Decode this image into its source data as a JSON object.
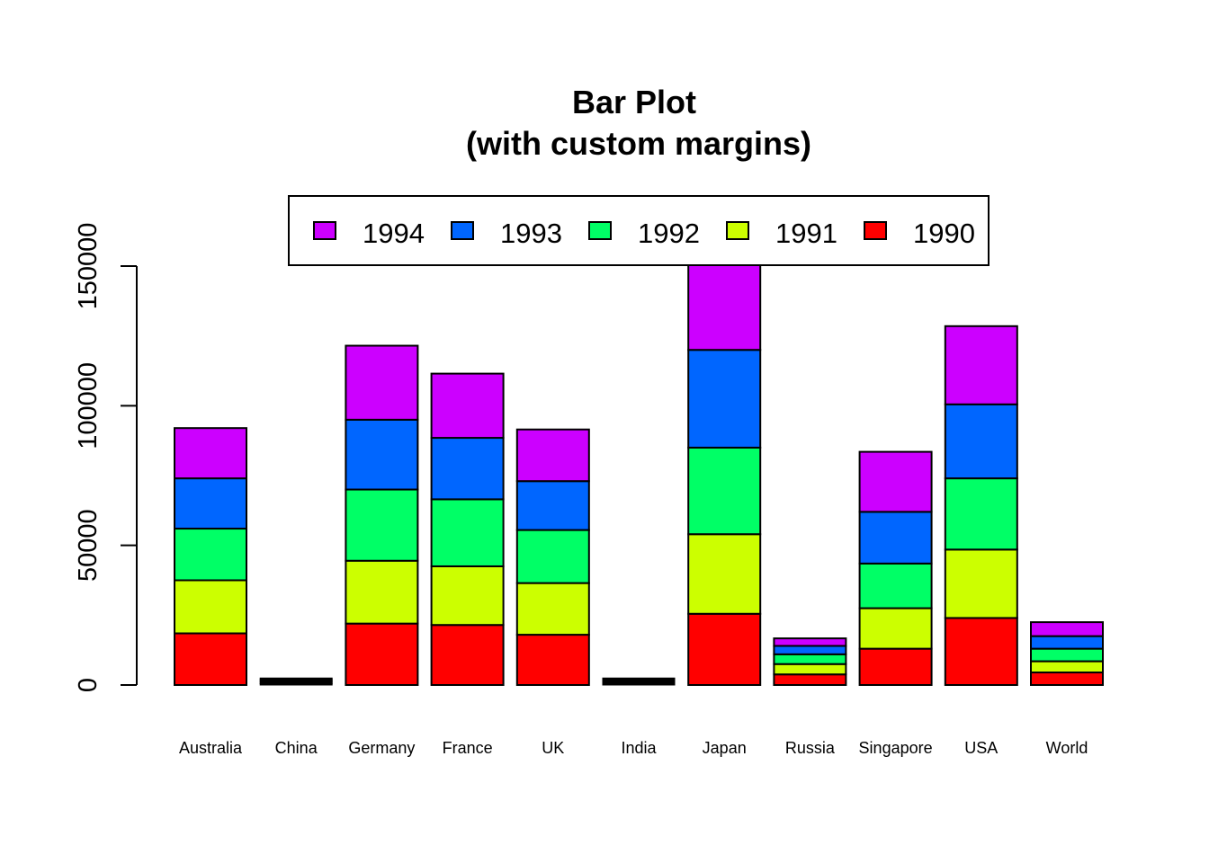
{
  "chart_data": {
    "type": "bar",
    "stacked": true,
    "title": "Bar Plot",
    "subtitle": "(with custom margins)",
    "xlabel": "",
    "ylabel": "",
    "ylim": [
      0,
      150000
    ],
    "yticks": [
      0,
      50000,
      100000,
      150000
    ],
    "ytick_labels": [
      "0",
      "50000",
      "100000",
      "150000"
    ],
    "grid": false,
    "legend_position": "top",
    "categories": [
      "Australia",
      "China",
      "Germany",
      "France",
      "UK",
      "India",
      "Japan",
      "Russia",
      "Singapore",
      "USA",
      "World"
    ],
    "series": [
      {
        "name": "1990",
        "color": "#FF0000",
        "values": [
          18500,
          500,
          22000,
          21500,
          18000,
          500,
          25500,
          3800,
          13000,
          24000,
          4500
        ]
      },
      {
        "name": "1991",
        "color": "#CCFF00",
        "values": [
          19000,
          500,
          22500,
          21000,
          18500,
          500,
          28500,
          3700,
          14500,
          24500,
          4000
        ]
      },
      {
        "name": "1992",
        "color": "#00FF66",
        "values": [
          18500,
          500,
          25500,
          24000,
          19000,
          500,
          31000,
          3500,
          16000,
          25500,
          4500
        ]
      },
      {
        "name": "1993",
        "color": "#0066FF",
        "values": [
          18000,
          500,
          25000,
          22000,
          17500,
          500,
          35000,
          3000,
          18500,
          26500,
          4500
        ]
      },
      {
        "name": "1994",
        "color": "#CC00FF",
        "values": [
          18000,
          500,
          26500,
          23000,
          18500,
          500,
          31000,
          2700,
          21500,
          28000,
          5000
        ]
      }
    ],
    "legend_order": [
      "1994",
      "1993",
      "1992",
      "1991",
      "1990"
    ]
  }
}
